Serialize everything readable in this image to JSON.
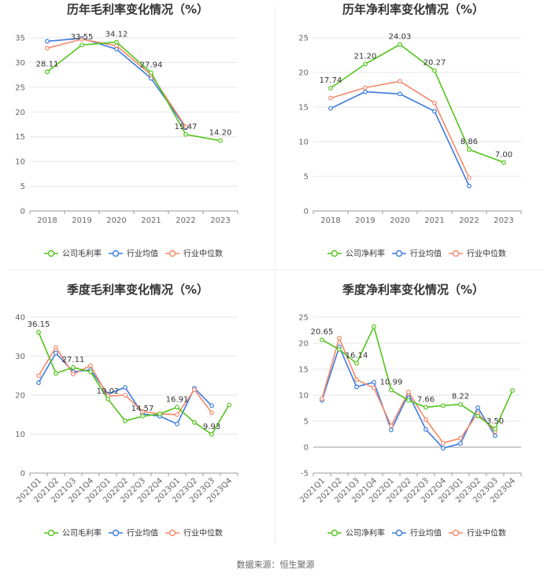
{
  "source": "数据来源：恒生聚源",
  "colors": {
    "company": "#52c41a",
    "average": "#3a7be0",
    "median": "#f4886a",
    "grid": "#e6e6e6",
    "axis": "#999999"
  },
  "chart_data": [
    {
      "type": "line",
      "title": "历年毛利率变化情况（%）",
      "categories": [
        "2018",
        "2019",
        "2020",
        "2021",
        "2022",
        "2023"
      ],
      "ylim": [
        0,
        35
      ],
      "yticks": [
        0,
        5,
        10,
        15,
        20,
        25,
        30,
        35
      ],
      "grid": true,
      "legend": "bottom",
      "series": [
        {
          "name": "公司毛利率",
          "key": "company",
          "values": [
            28.11,
            33.55,
            34.12,
            27.94,
            15.47,
            14.2
          ],
          "labels": [
            "28.11",
            "33.55",
            "34.12",
            "27.94",
            "15.47",
            "14.20"
          ]
        },
        {
          "name": "行业均值",
          "key": "average",
          "values": [
            34.3,
            34.9,
            32.7,
            26.8,
            16.8,
            null
          ]
        },
        {
          "name": "行业中位数",
          "key": "median",
          "values": [
            32.9,
            34.7,
            33.4,
            27.5,
            17.0,
            null
          ]
        }
      ]
    },
    {
      "type": "line",
      "title": "历年净利率变化情况（%）",
      "categories": [
        "2018",
        "2019",
        "2020",
        "2021",
        "2022",
        "2023"
      ],
      "ylim": [
        0,
        25
      ],
      "yticks": [
        0,
        5,
        10,
        15,
        20,
        25
      ],
      "grid": true,
      "legend": "bottom",
      "series": [
        {
          "name": "公司净利率",
          "key": "company",
          "values": [
            17.74,
            21.2,
            24.03,
            20.27,
            8.86,
            7.0
          ],
          "labels": [
            "17.74",
            "21.20",
            "24.03",
            "20.27",
            "8.86",
            "7.00"
          ]
        },
        {
          "name": "行业均值",
          "key": "average",
          "values": [
            14.8,
            17.2,
            16.9,
            14.4,
            3.6,
            null
          ]
        },
        {
          "name": "行业中位数",
          "key": "median",
          "values": [
            16.3,
            17.8,
            18.7,
            15.6,
            4.8,
            null
          ]
        }
      ]
    },
    {
      "type": "line",
      "title": "季度毛利率变化情况（%）",
      "categories": [
        "2021Q1",
        "2021Q2",
        "2021Q3",
        "2021Q4",
        "2022Q1",
        "2022Q2",
        "2022Q3",
        "2022Q4",
        "2023Q1",
        "2023Q2",
        "2023Q3",
        "2023Q4"
      ],
      "ylim": [
        0,
        40
      ],
      "yticks": [
        0,
        10,
        20,
        30,
        40
      ],
      "grid": true,
      "legend": "bottom",
      "series": [
        {
          "name": "公司毛利率",
          "key": "company",
          "values": [
            36.15,
            25.6,
            27.11,
            26.0,
            19.02,
            13.4,
            14.57,
            15.2,
            16.91,
            13.0,
            9.93,
            17.5
          ],
          "labels": [
            "36.15",
            "",
            "27.11",
            "",
            "19.02",
            "",
            "14.57",
            "",
            "16.91",
            "",
            "9.93",
            ""
          ]
        },
        {
          "name": "行业均值",
          "key": "average",
          "values": [
            23.2,
            30.8,
            26.0,
            26.5,
            20.3,
            22.0,
            15.2,
            14.6,
            12.6,
            21.8,
            17.3,
            null
          ]
        },
        {
          "name": "行业中位数",
          "key": "median",
          "values": [
            25.0,
            32.3,
            25.4,
            27.6,
            19.8,
            20.0,
            15.8,
            15.2,
            15.0,
            21.4,
            15.5,
            null
          ]
        }
      ]
    },
    {
      "type": "line",
      "title": "季度净利率变化情况（%）",
      "categories": [
        "2021Q1",
        "2021Q2",
        "2021Q3",
        "2021Q4",
        "2022Q1",
        "2022Q2",
        "2022Q3",
        "2022Q4",
        "2023Q1",
        "2023Q2",
        "2023Q3",
        "2023Q4"
      ],
      "ylim": [
        -5,
        25
      ],
      "yticks": [
        -5,
        0,
        5,
        10,
        15,
        20,
        25
      ],
      "grid": true,
      "legend": "bottom",
      "series": [
        {
          "name": "公司净利率",
          "key": "company",
          "values": [
            20.65,
            18.8,
            16.14,
            23.2,
            10.99,
            9.0,
            7.66,
            8.0,
            8.22,
            6.0,
            3.5,
            10.9
          ],
          "labels": [
            "20.65",
            "",
            "16.14",
            "",
            "10.99",
            "",
            "7.66",
            "",
            "8.22",
            "",
            "3.50",
            ""
          ]
        },
        {
          "name": "行业均值",
          "key": "average",
          "values": [
            9.0,
            19.3,
            11.6,
            12.5,
            3.3,
            10.2,
            3.4,
            -0.2,
            0.7,
            7.6,
            2.2,
            null
          ]
        },
        {
          "name": "行业中位数",
          "key": "median",
          "values": [
            9.3,
            21.0,
            13.0,
            11.4,
            4.1,
            10.6,
            5.3,
            0.8,
            1.7,
            6.5,
            3.0,
            null
          ]
        }
      ]
    }
  ]
}
